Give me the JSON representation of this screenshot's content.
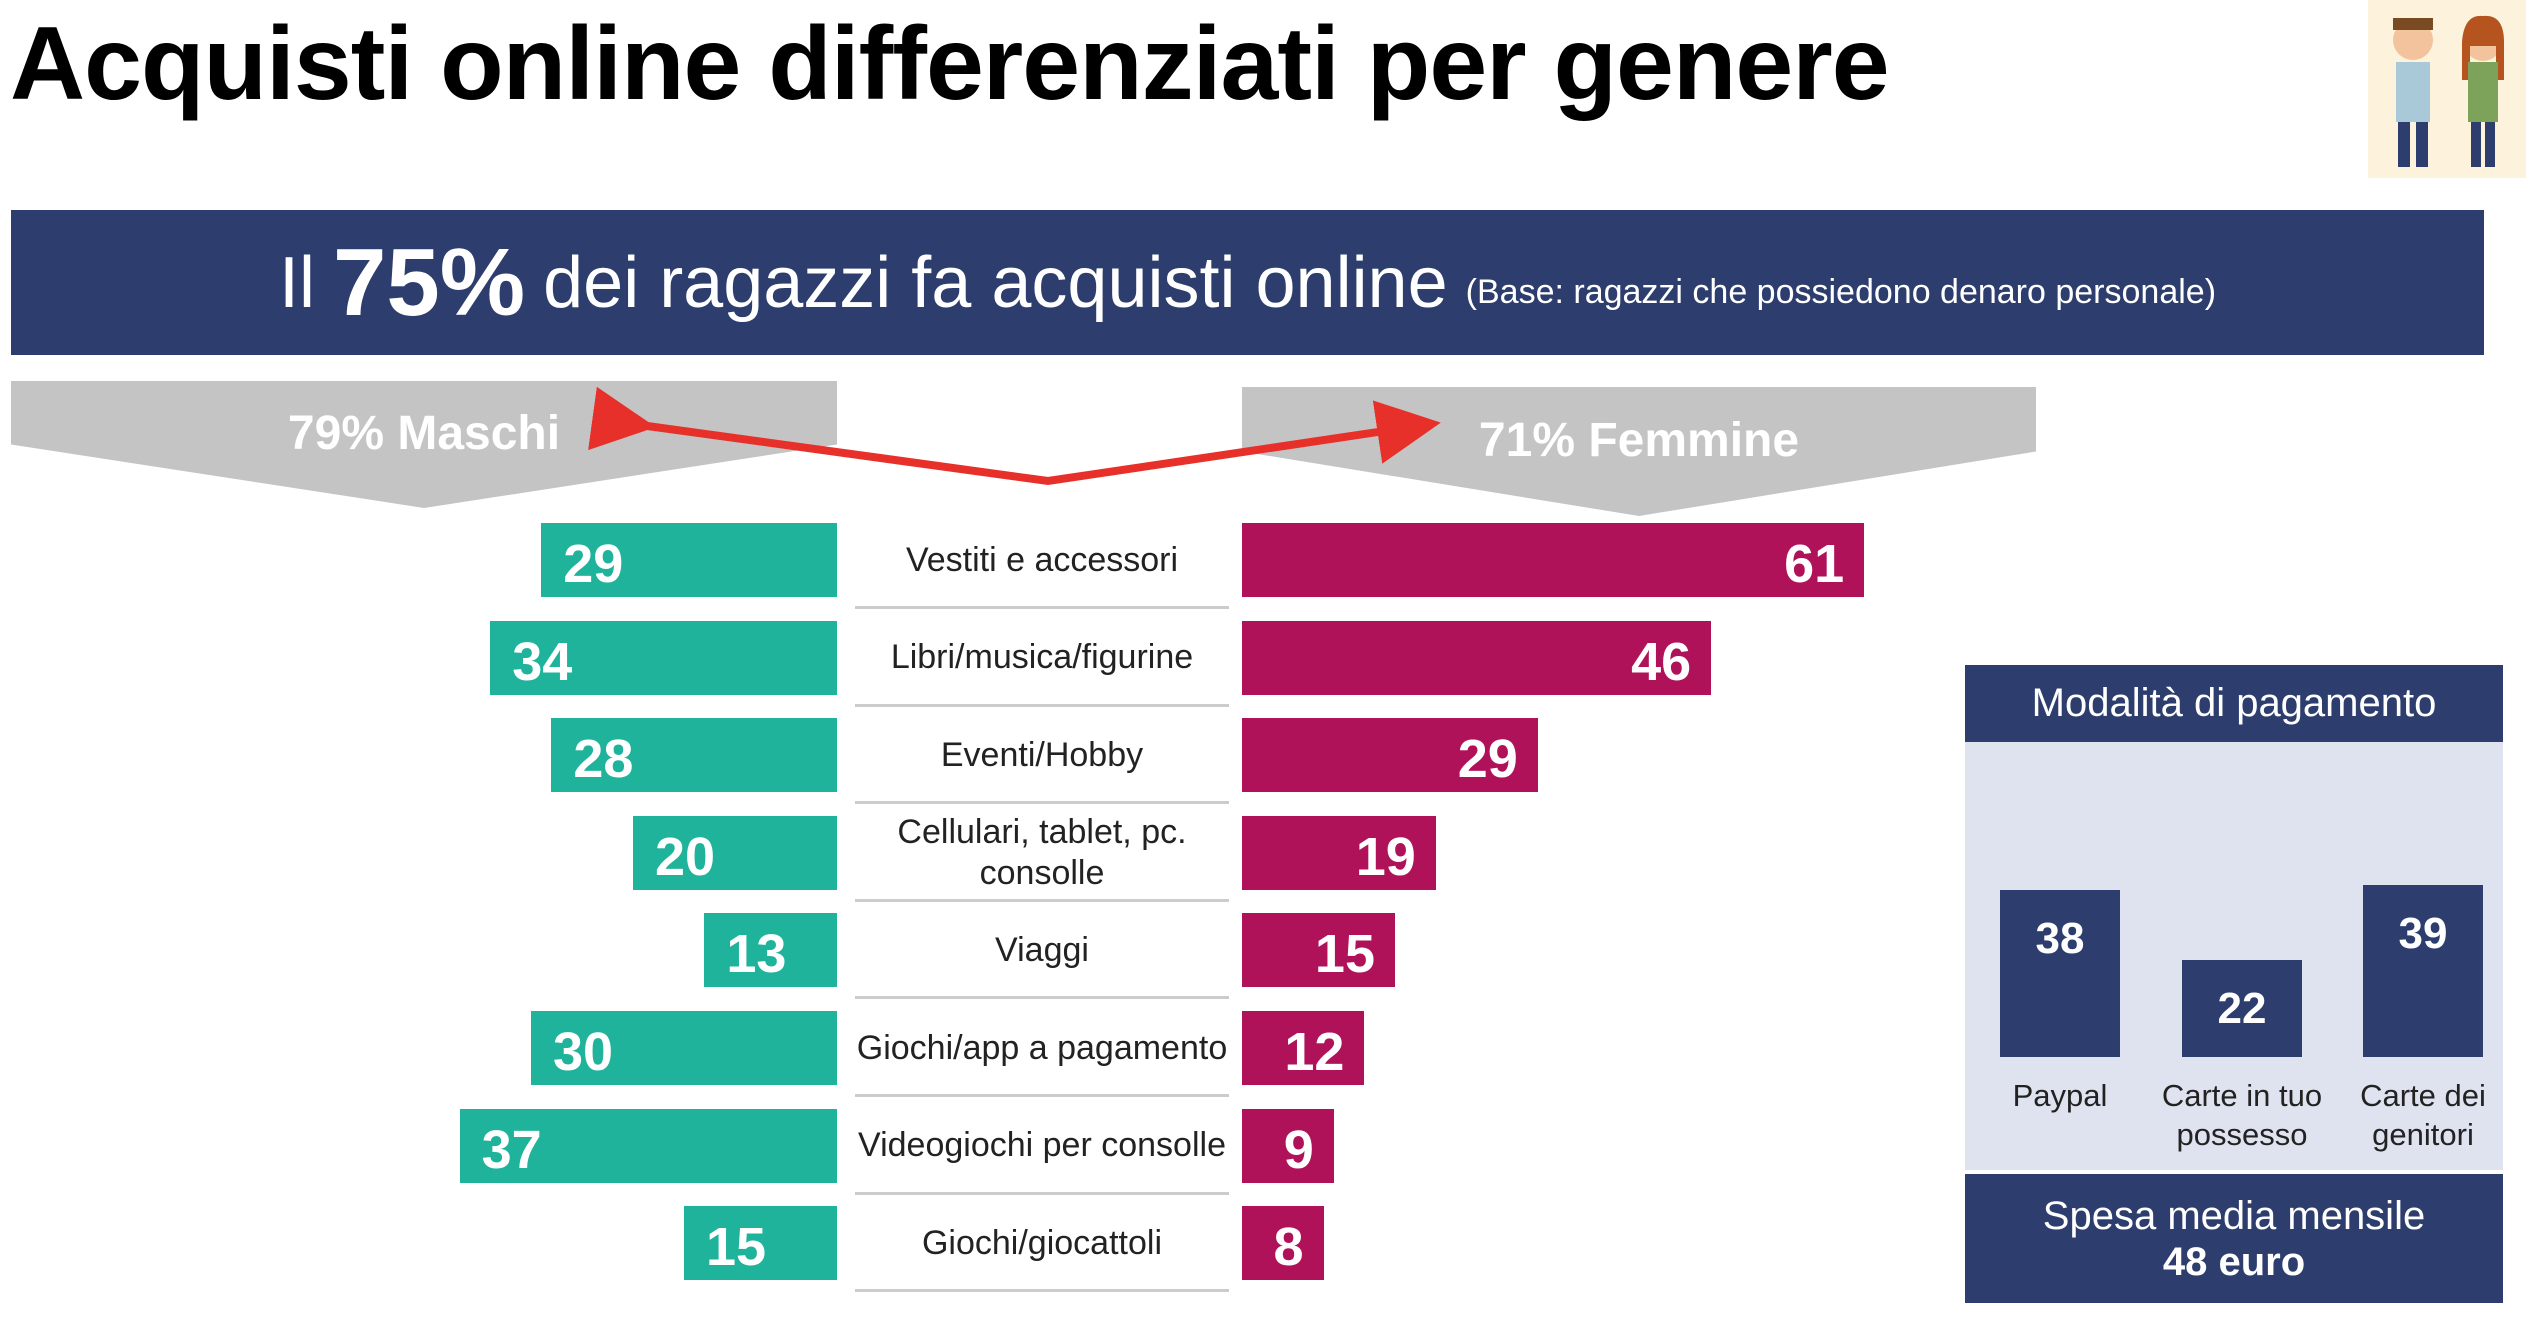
{
  "title": "Acquisti online differenziati per genere",
  "banner": {
    "prefix": "Il",
    "highlight": "75%",
    "text": "dei ragazzi fa acquisti online",
    "note": "(Base: ragazzi che possiedono denaro personale)"
  },
  "chart_data": [
    {
      "type": "butterfly",
      "categories": [
        "Vestiti e accessori",
        "Libri/musica/figurine",
        "Eventi/Hobby",
        "Cellulari, tablet, pc. consolle",
        "Viaggi",
        "Giochi/app a pagamento",
        "Videogiochi per consolle",
        "Giochi/giocattoli"
      ],
      "series": [
        {
          "name": "79% Maschi",
          "color": "#1fb39b",
          "values": [
            29,
            34,
            28,
            20,
            13,
            30,
            37,
            15
          ]
        },
        {
          "name": "71% Femmine",
          "color": "#b0125a",
          "values": [
            61,
            46,
            29,
            19,
            15,
            12,
            9,
            8
          ]
        }
      ]
    },
    {
      "type": "bar",
      "title": "Modalità di pagamento",
      "categories": [
        "Paypal",
        "Carte in tuo possesso",
        "Carte dei genitori"
      ],
      "values": [
        38,
        22,
        39
      ],
      "color": "#2d3e6e"
    }
  ],
  "footer": {
    "label": "Spesa media mensile",
    "value": "48 euro"
  }
}
